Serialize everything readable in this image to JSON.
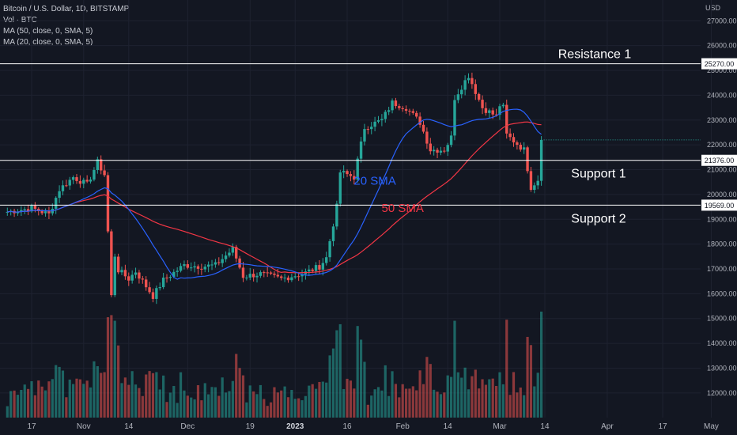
{
  "legend": {
    "symbol": "Bitcoin / U.S. Dollar, 1D, BITSTAMP",
    "volume": "Vol · BTC",
    "ma50": "MA (50, close, 0, SMA, 5)",
    "ma20": "MA (20, close, 0, SMA, 5)"
  },
  "currency": "USD",
  "chart_data": {
    "type": "candlestick",
    "title": "Bitcoin / U.S. Dollar, 1D, BITSTAMP",
    "ylim": [
      11500,
      27500
    ],
    "y_ticks": [
      12000,
      13000,
      14000,
      15000,
      16000,
      17000,
      18000,
      19000,
      20000,
      21000,
      22000,
      23000,
      24000,
      25000,
      26000,
      27000
    ],
    "x_ticks": [
      {
        "label": "17",
        "date": "2022-10-17"
      },
      {
        "label": "Nov",
        "date": "2022-11-01"
      },
      {
        "label": "14",
        "date": "2022-11-14"
      },
      {
        "label": "Dec",
        "date": "2022-12-01"
      },
      {
        "label": "19",
        "date": "2022-12-19"
      },
      {
        "label": "2023",
        "date": "2023-01-01"
      },
      {
        "label": "16",
        "date": "2023-01-16"
      },
      {
        "label": "Feb",
        "date": "2023-02-01"
      },
      {
        "label": "14",
        "date": "2023-02-14"
      },
      {
        "label": "Mar",
        "date": "2023-03-01"
      },
      {
        "label": "14",
        "date": "2023-03-14"
      },
      {
        "label": "Apr",
        "date": "2023-04-01"
      },
      {
        "label": "17",
        "date": "2023-04-17"
      },
      {
        "label": "May",
        "date": "2023-05-01"
      }
    ],
    "levels": [
      {
        "name": "Resistance 1",
        "value": 25270.0,
        "label": "25270.00"
      },
      {
        "name": "Support 1",
        "value": 21376.0,
        "label": "21376.00"
      },
      {
        "name": "Support 2",
        "value": 19569.0,
        "label": "19569.00"
      }
    ],
    "annotations": [
      {
        "text": "20 SMA",
        "date": "2023-01-24",
        "value": 20400,
        "color": "#2962ff"
      },
      {
        "text": "50 SMA",
        "date": "2023-02-01",
        "value": 19300,
        "color": "#f23645"
      }
    ],
    "price_anchors": [
      {
        "date": "2022-10-10",
        "value": 19300
      },
      {
        "date": "2022-10-17",
        "value": 19450
      },
      {
        "date": "2022-10-22",
        "value": 19200
      },
      {
        "date": "2022-10-25",
        "value": 20200
      },
      {
        "date": "2022-10-29",
        "value": 20700
      },
      {
        "date": "2022-11-02",
        "value": 20400
      },
      {
        "date": "2022-11-05",
        "value": 21300
      },
      {
        "date": "2022-11-07",
        "value": 20800
      },
      {
        "date": "2022-11-08",
        "value": 18500
      },
      {
        "date": "2022-11-09",
        "value": 15900
      },
      {
        "date": "2022-11-10",
        "value": 17550
      },
      {
        "date": "2022-11-11",
        "value": 16950
      },
      {
        "date": "2022-11-14",
        "value": 16600
      },
      {
        "date": "2022-11-16",
        "value": 16900
      },
      {
        "date": "2022-11-21",
        "value": 15900
      },
      {
        "date": "2022-11-24",
        "value": 16550
      },
      {
        "date": "2022-11-30",
        "value": 17150
      },
      {
        "date": "2022-12-05",
        "value": 17100
      },
      {
        "date": "2022-12-09",
        "value": 17150
      },
      {
        "date": "2022-12-14",
        "value": 17800
      },
      {
        "date": "2022-12-17",
        "value": 16700
      },
      {
        "date": "2022-12-22",
        "value": 16800
      },
      {
        "date": "2022-12-28",
        "value": 16600
      },
      {
        "date": "2023-01-04",
        "value": 16850
      },
      {
        "date": "2023-01-08",
        "value": 17100
      },
      {
        "date": "2023-01-10",
        "value": 17450
      },
      {
        "date": "2023-01-13",
        "value": 19500
      },
      {
        "date": "2023-01-14",
        "value": 20900
      },
      {
        "date": "2023-01-18",
        "value": 20700
      },
      {
        "date": "2023-01-21",
        "value": 22700
      },
      {
        "date": "2023-01-26",
        "value": 23000
      },
      {
        "date": "2023-01-29",
        "value": 23700
      },
      {
        "date": "2023-02-02",
        "value": 23500
      },
      {
        "date": "2023-02-06",
        "value": 22900
      },
      {
        "date": "2023-02-09",
        "value": 21800
      },
      {
        "date": "2023-02-13",
        "value": 21800
      },
      {
        "date": "2023-02-15",
        "value": 22300
      },
      {
        "date": "2023-02-16",
        "value": 23900
      },
      {
        "date": "2023-02-20",
        "value": 24800
      },
      {
        "date": "2023-02-24",
        "value": 23500
      },
      {
        "date": "2023-02-28",
        "value": 23150
      },
      {
        "date": "2023-03-01",
        "value": 23600
      },
      {
        "date": "2023-03-02",
        "value": 23500
      },
      {
        "date": "2023-03-03",
        "value": 22400
      },
      {
        "date": "2023-03-08",
        "value": 21800
      },
      {
        "date": "2023-03-10",
        "value": 20300
      },
      {
        "date": "2023-03-12",
        "value": 20600
      },
      {
        "date": "2023-03-13",
        "value": 22200
      }
    ]
  }
}
